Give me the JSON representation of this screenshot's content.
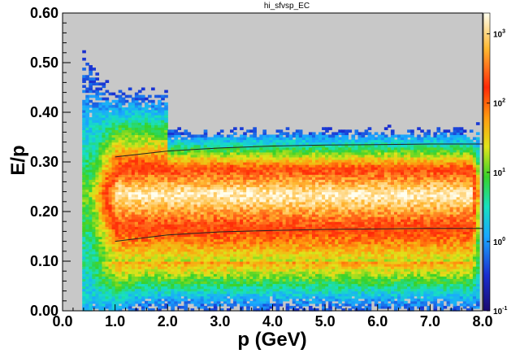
{
  "chart_data": {
    "type": "heatmap",
    "title": "hi_sfvsp_EC",
    "xlabel": "p (GeV)",
    "ylabel": "E/p",
    "xlim": [
      0.0,
      8.0
    ],
    "ylim": [
      0.0,
      0.6
    ],
    "x_tick_labels": [
      "0.0",
      "1.0",
      "2.0",
      "3.0",
      "4.0",
      "5.0",
      "6.0",
      "7.0",
      "8.0"
    ],
    "y_tick_labels": [
      "0.00",
      "0.10",
      "0.20",
      "0.30",
      "0.40",
      "0.50",
      "0.60"
    ],
    "z_scale": "log",
    "zlim": [
      0.1,
      2000
    ],
    "colorbar": {
      "tick_labels": [
        {
          "base": "10",
          "exp": "-1",
          "value": 0.1
        },
        {
          "base": "10",
          "exp": "0",
          "value": 1
        },
        {
          "base": "10",
          "exp": "1",
          "value": 10
        },
        {
          "base": "10",
          "exp": "2",
          "value": 100
        },
        {
          "base": "10",
          "exp": "3",
          "value": 1000
        }
      ]
    },
    "background_color": "#c8c8c8",
    "density_model": {
      "x_range": [
        0.55,
        7.95
      ],
      "core_center_y": 0.235,
      "core_half_width_y": 0.03,
      "band_bottom_y": 0.11,
      "band_top_y": 0.28,
      "peak_count": 2000
    },
    "cut_lines": [
      {
        "name": "upper",
        "points": [
          [
            1.0,
            0.31
          ],
          [
            2.0,
            0.322
          ],
          [
            3.0,
            0.328
          ],
          [
            4.0,
            0.332
          ],
          [
            5.0,
            0.334
          ],
          [
            6.0,
            0.335
          ],
          [
            7.0,
            0.336
          ],
          [
            8.0,
            0.336
          ]
        ]
      },
      {
        "name": "lower",
        "points": [
          [
            1.0,
            0.14
          ],
          [
            2.0,
            0.153
          ],
          [
            3.0,
            0.159
          ],
          [
            4.0,
            0.162
          ],
          [
            5.0,
            0.164
          ],
          [
            6.0,
            0.165
          ],
          [
            7.0,
            0.166
          ],
          [
            8.0,
            0.166
          ]
        ]
      }
    ],
    "grid": false
  }
}
